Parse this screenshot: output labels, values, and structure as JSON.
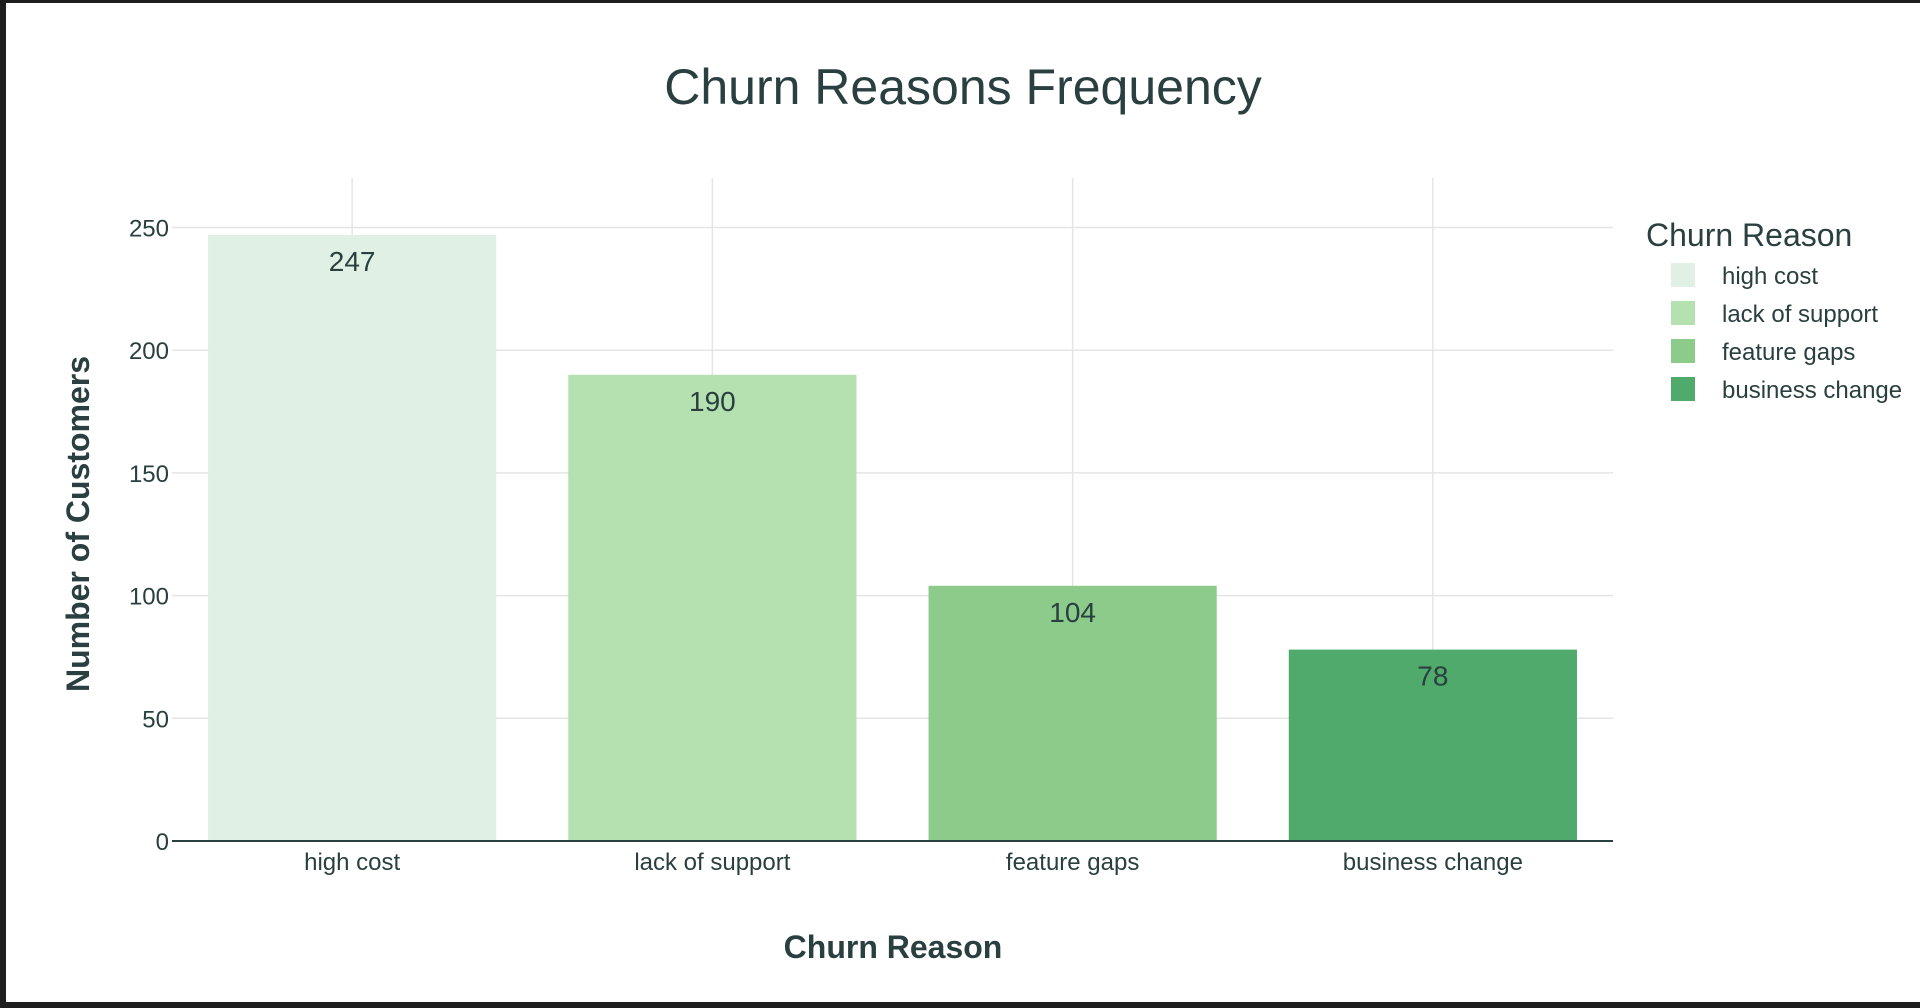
{
  "chart_data": {
    "type": "bar",
    "title": "Churn Reasons Frequency",
    "xlabel": "Churn Reason",
    "ylabel": "Number of Customers",
    "categories": [
      "high cost",
      "lack of support",
      "feature gaps",
      "business change"
    ],
    "values": [
      247,
      190,
      104,
      78
    ],
    "data_labels": [
      "247",
      "190",
      "104",
      "78"
    ],
    "ylim": [
      0,
      260
    ],
    "yticks": [
      0,
      50,
      100,
      150,
      200,
      250
    ],
    "ytick_labels": [
      "0",
      "50",
      "100",
      "150",
      "200",
      "250"
    ],
    "grid": true,
    "legend": {
      "title": "Churn Reason",
      "placement": "top-right",
      "entries": [
        "high cost",
        "lack of support",
        "feature gaps",
        "business change"
      ]
    },
    "colors": [
      "#e1f0e5",
      "#b5e0b0",
      "#8dcb8b",
      "#50aa6b"
    ]
  },
  "theme": {
    "text_color": "#2a3f3f",
    "grid_color": "#e5e5e5",
    "axis_color": "#2a3f3f"
  }
}
